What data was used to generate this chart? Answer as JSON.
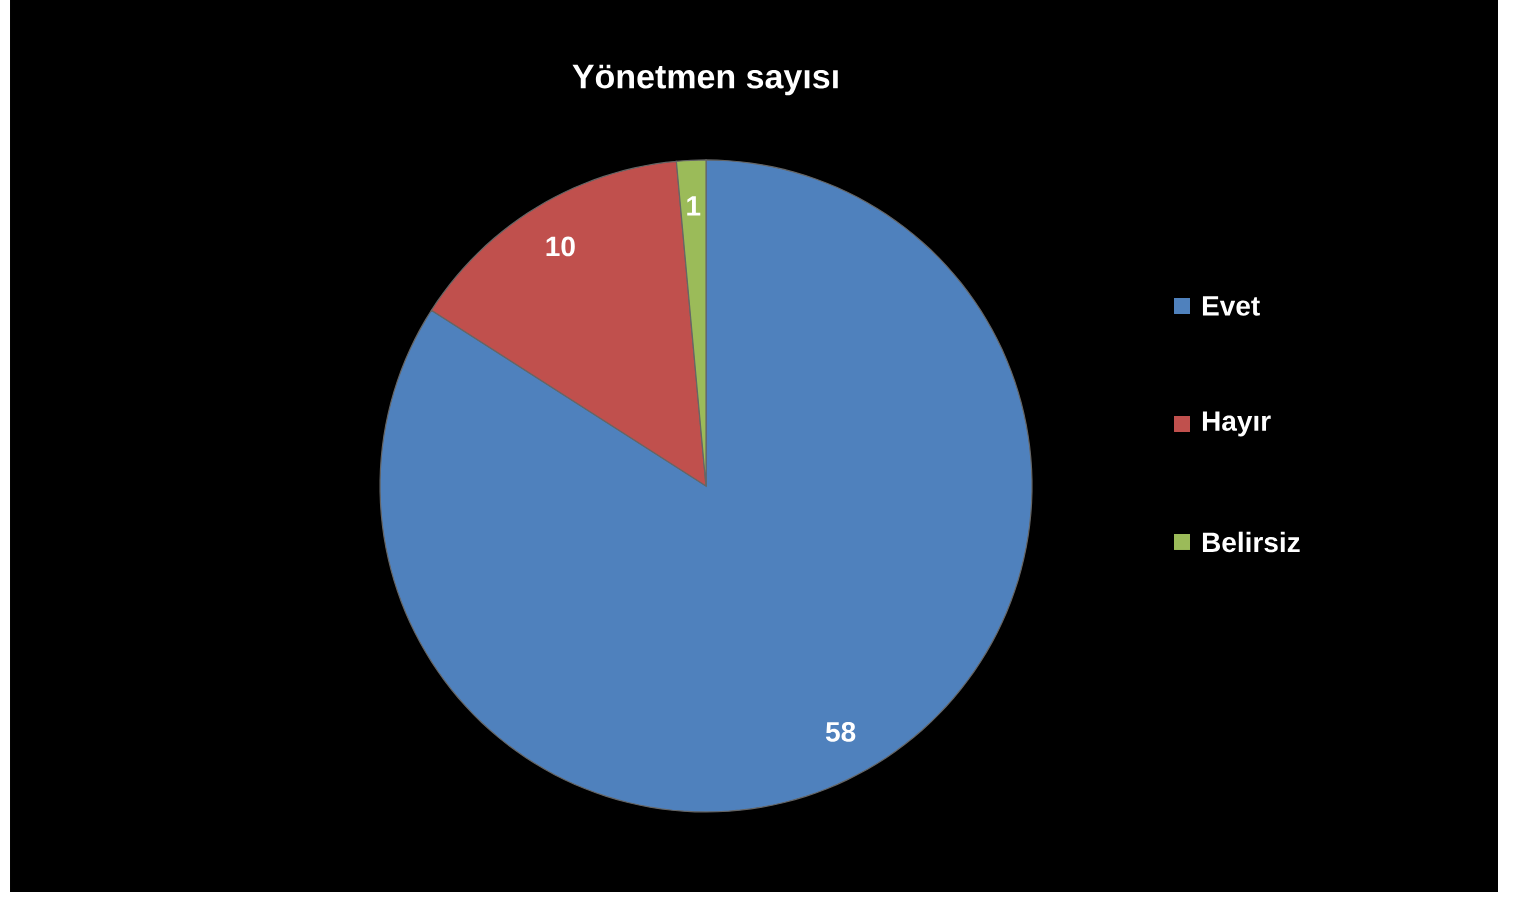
{
  "chart_data": {
    "type": "pie",
    "title": "Yönetmen sayısı",
    "categories": [
      "Evet",
      "Hayır",
      "Belirsiz"
    ],
    "values": [
      58,
      10,
      1
    ],
    "colors": [
      "#4f81bd",
      "#c0504d",
      "#9bbb59"
    ],
    "value_labels": [
      "58",
      "10",
      "1"
    ],
    "legend": "right"
  }
}
